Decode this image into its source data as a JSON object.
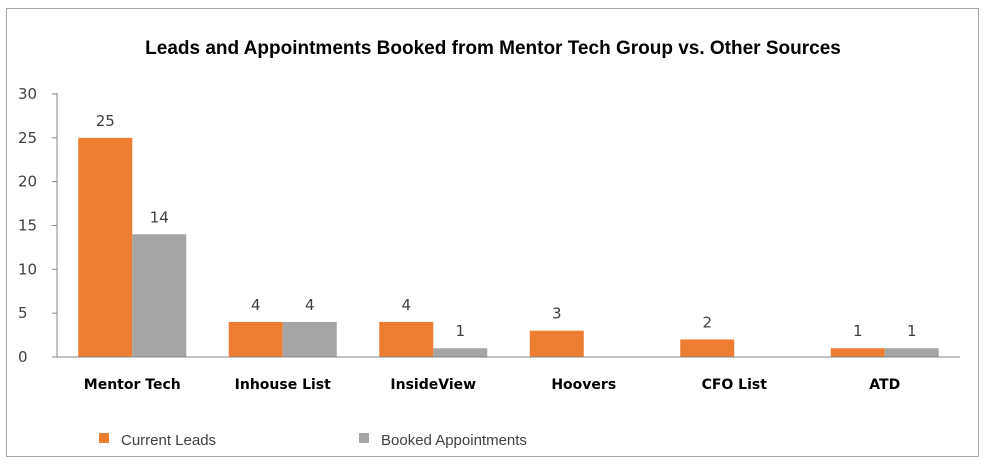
{
  "chart_data": {
    "type": "bar",
    "title": "Leads and Appointments Booked from Mentor Tech Group vs. Other Sources",
    "xlabel": "",
    "ylabel": "",
    "ylim": [
      0,
      30
    ],
    "yticks": [
      0,
      5,
      10,
      15,
      20,
      25,
      30
    ],
    "grid": false,
    "legend_position": "bottom-left",
    "categories": [
      "Mentor Tech",
      "Inhouse List",
      "InsideView",
      "Hoovers",
      "CFO List",
      "ATD"
    ],
    "series": [
      {
        "name": "Current Leads",
        "color": "#ed7d31",
        "values": [
          25,
          4,
          4,
          3,
          2,
          1
        ],
        "labels": [
          "25",
          "4",
          "4",
          "3",
          "2",
          "1"
        ]
      },
      {
        "name": "Booked Appointments",
        "color": "#a5a5a5",
        "values": [
          14,
          4,
          1,
          0,
          0,
          1
        ],
        "labels": [
          "14",
          "4",
          "1",
          "",
          "",
          "1"
        ]
      }
    ]
  }
}
